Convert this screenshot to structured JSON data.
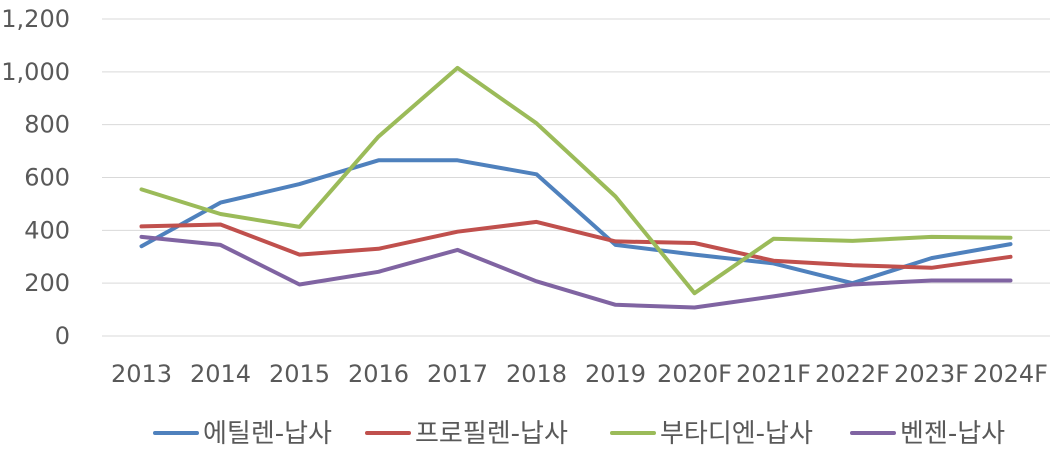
{
  "chart_data": {
    "type": "line",
    "title": "",
    "xlabel": "",
    "ylabel": "",
    "ylim": [
      0,
      1200
    ],
    "yticks": [
      0,
      200,
      400,
      600,
      800,
      1000,
      1200
    ],
    "ytick_labels": [
      "0",
      "200",
      "400",
      "600",
      "800",
      "1,000",
      "1,200"
    ],
    "grid": true,
    "legend_position": "bottom",
    "categories": [
      "2013",
      "2014",
      "2015",
      "2016",
      "2017",
      "2018",
      "2019",
      "2020F",
      "2021F",
      "2022F",
      "2023F",
      "2024F"
    ],
    "series": [
      {
        "name": "에틸렌-납사",
        "color": "#4f81bd",
        "values": [
          340,
          505,
          575,
          665,
          665,
          612,
          345,
          308,
          275,
          200,
          295,
          348
        ]
      },
      {
        "name": "프로필렌-납사",
        "color": "#c0504d",
        "values": [
          415,
          422,
          308,
          330,
          395,
          432,
          358,
          352,
          285,
          268,
          258,
          300
        ]
      },
      {
        "name": "부타디엔-납사",
        "color": "#9bbb59",
        "values": [
          555,
          462,
          413,
          755,
          1015,
          805,
          528,
          162,
          368,
          360,
          375,
          372
        ]
      },
      {
        "name": "벤젠-납사",
        "color": "#8064a2",
        "values": [
          375,
          345,
          195,
          243,
          326,
          207,
          118,
          108,
          150,
          195,
          210,
          210
        ]
      }
    ]
  }
}
